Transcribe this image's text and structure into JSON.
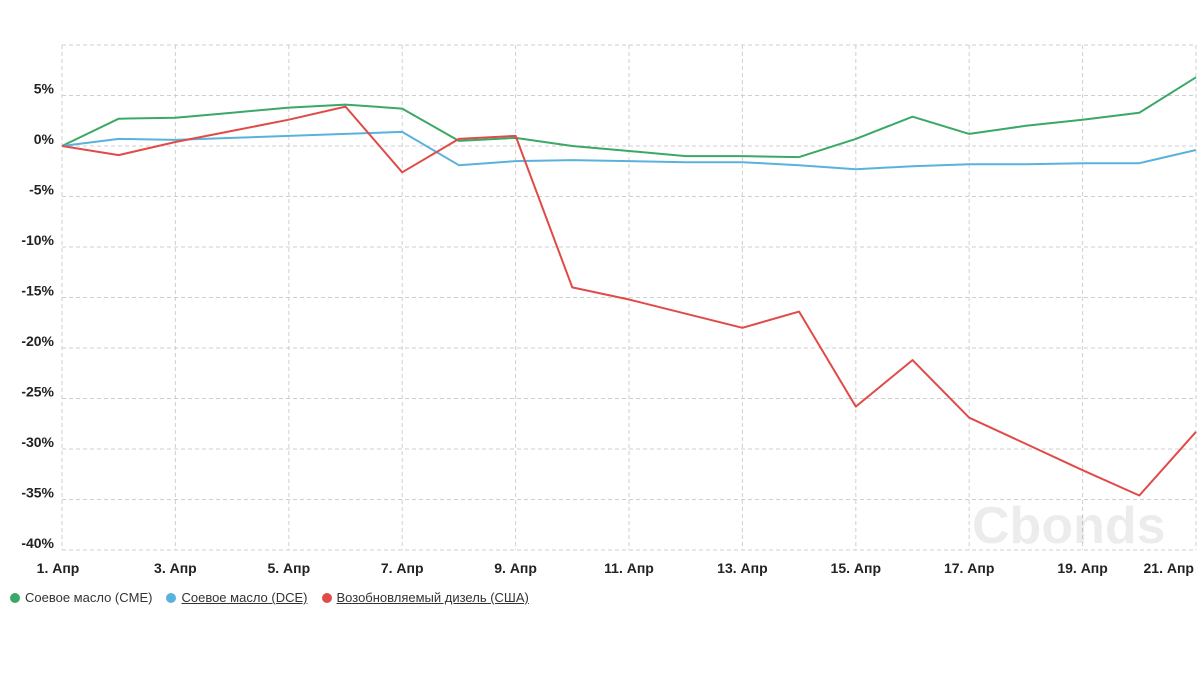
{
  "chart_data": {
    "type": "line",
    "x": [
      "1. Апр",
      "2. Апр",
      "3. Апр",
      "4. Апр",
      "5. Апр",
      "6. Апр",
      "7. Апр",
      "8. Апр",
      "9. Апр",
      "10. Апр",
      "11. Апр",
      "12. Апр",
      "13. Апр",
      "14. Апр",
      "15. Апр",
      "16. Апр",
      "17. Апр",
      "18. Апр",
      "19. Апр",
      "20. Апр",
      "21. Апр"
    ],
    "x_tick_labels": [
      "1. Апр",
      "3. Апр",
      "5. Апр",
      "7. Апр",
      "9. Апр",
      "11. Апр",
      "13. Апр",
      "15. Апр",
      "17. Апр",
      "19. Апр",
      "21. Апр"
    ],
    "y_tick_labels": [
      "5%",
      "0%",
      "-5%",
      "-10%",
      "-15%",
      "-20%",
      "-25%",
      "-30%",
      "-35%",
      "-40%"
    ],
    "ylim": [
      -40,
      10
    ],
    "grid": true,
    "legend_position": "bottom-left",
    "series": [
      {
        "name": "Соевое масло (CME)",
        "color": "#3aa867",
        "values": [
          0,
          2.7,
          2.8,
          3.3,
          3.8,
          4.1,
          3.7,
          0.5,
          0.8,
          0,
          -0.5,
          -1.0,
          -1.0,
          -1.1,
          0.7,
          2.9,
          1.2,
          2.0,
          2.6,
          3.3,
          6.8
        ]
      },
      {
        "name": "Соевое масло (DCE)",
        "color": "#5ab2dc",
        "values": [
          0,
          0.7,
          0.6,
          0.8,
          1.0,
          1.2,
          1.4,
          -1.9,
          -1.5,
          -1.4,
          -1.5,
          -1.6,
          -1.6,
          -1.9,
          -2.3,
          -2.0,
          -1.8,
          -1.8,
          -1.7,
          -1.7,
          -0.4
        ]
      },
      {
        "name": "Возобновляемый дизель (США)",
        "color": "#e04b48",
        "values": [
          0,
          -0.9,
          0.4,
          1.5,
          2.6,
          3.9,
          -2.6,
          0.7,
          1.0,
          -14.0,
          -15.2,
          -16.6,
          -18.0,
          -16.4,
          -25.8,
          -21.2,
          -26.9,
          -29.5,
          -32.1,
          -34.6,
          -28.3
        ]
      }
    ],
    "watermark": "Cbonds"
  }
}
